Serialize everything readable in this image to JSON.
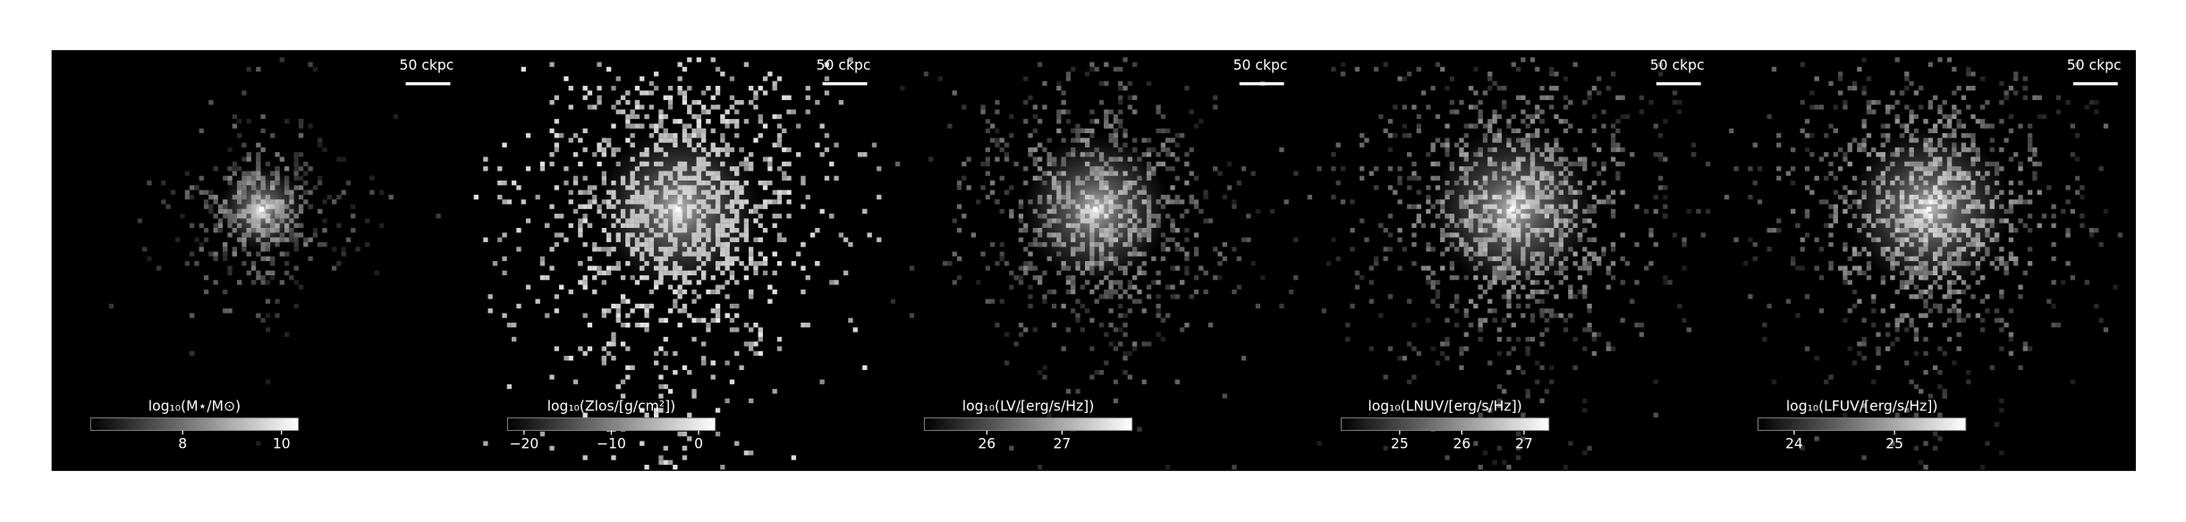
{
  "panels": [
    {
      "scale_label": "50 ckpc",
      "colorbar": {
        "label": "log₁₀(M⋆/M⊙)",
        "clim": [
          6.14,
          10.34
        ],
        "ticks": [
          8,
          10
        ]
      }
    },
    {
      "scale_label": "50 ckpc",
      "colorbar": {
        "label": "log₁₀(Zlos/[g/cm²])",
        "clim": [
          -21.9,
          1.9
        ],
        "ticks": [
          {
            "value": -20,
            "label": "−20"
          },
          {
            "value": -10,
            "label": "−10"
          },
          0
        ]
      }
    },
    {
      "scale_label": "50 ckpc",
      "colorbar": {
        "label": "log₁₀(LV/[erg/s/Hz])",
        "clim": [
          25.17,
          27.93
        ],
        "ticks": [
          26,
          27
        ]
      }
    },
    {
      "scale_label": "50 ckpc",
      "colorbar": {
        "label": "log₁₀(LNUV/[erg/s/Hz])",
        "clim": [
          24.06,
          27.4
        ],
        "ticks": [
          25,
          26,
          27
        ]
      }
    },
    {
      "scale_label": "50 ckpc",
      "colorbar": {
        "label": "log₁₀(LFUV/[erg/s/Hz])",
        "clim": [
          23.64,
          25.71
        ],
        "ticks": [
          24,
          25
        ]
      }
    }
  ]
}
